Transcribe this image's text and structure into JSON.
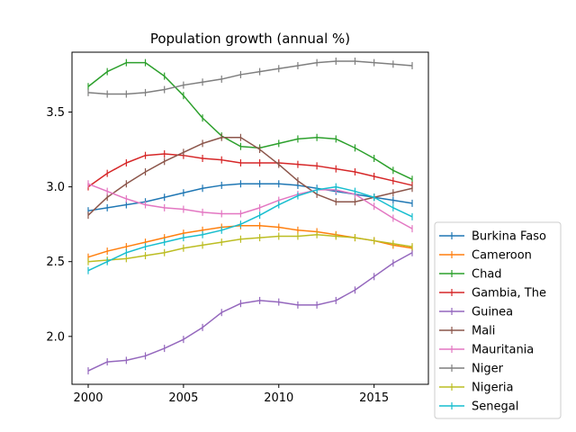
{
  "chart_data": {
    "type": "line",
    "title": "Population growth (annual %)",
    "xlabel": "",
    "ylabel": "",
    "x": [
      2000,
      2001,
      2002,
      2003,
      2004,
      2005,
      2006,
      2007,
      2008,
      2009,
      2010,
      2011,
      2012,
      2013,
      2014,
      2015,
      2016,
      2017
    ],
    "xlim": [
      1999.15,
      2017.85
    ],
    "ylim": [
      1.68,
      3.9
    ],
    "xticks": [
      2000,
      2005,
      2010,
      2015
    ],
    "yticks": [
      2.0,
      2.5,
      3.0,
      3.5
    ],
    "ytick_labels": [
      "2.0",
      "2.5",
      "3.0",
      "3.5"
    ],
    "grid": false,
    "legend_position": "lower right, outside the plot area",
    "marker": "vertical tick",
    "series": [
      {
        "name": "Burkina Faso",
        "color": "#1f77b4",
        "values": [
          2.84,
          2.86,
          2.88,
          2.9,
          2.93,
          2.96,
          2.99,
          3.01,
          3.02,
          3.02,
          3.02,
          3.01,
          2.99,
          2.97,
          2.95,
          2.93,
          2.91,
          2.89
        ]
      },
      {
        "name": "Cameroon",
        "color": "#ff7f0e",
        "values": [
          2.53,
          2.57,
          2.6,
          2.63,
          2.66,
          2.69,
          2.71,
          2.73,
          2.74,
          2.74,
          2.73,
          2.71,
          2.7,
          2.68,
          2.66,
          2.64,
          2.61,
          2.59
        ]
      },
      {
        "name": "Chad",
        "color": "#2ca02c",
        "values": [
          3.67,
          3.77,
          3.83,
          3.83,
          3.74,
          3.61,
          3.46,
          3.34,
          3.27,
          3.26,
          3.29,
          3.32,
          3.33,
          3.32,
          3.26,
          3.19,
          3.11,
          3.05
        ]
      },
      {
        "name": "Gambia, The",
        "color": "#d62728",
        "values": [
          3.0,
          3.09,
          3.16,
          3.21,
          3.22,
          3.21,
          3.19,
          3.18,
          3.16,
          3.16,
          3.16,
          3.15,
          3.14,
          3.12,
          3.1,
          3.07,
          3.04,
          3.01
        ]
      },
      {
        "name": "Guinea",
        "color": "#9467bd",
        "values": [
          1.77,
          1.83,
          1.84,
          1.87,
          1.92,
          1.98,
          2.06,
          2.16,
          2.22,
          2.24,
          2.23,
          2.21,
          2.21,
          2.24,
          2.31,
          2.4,
          2.49,
          2.56
        ]
      },
      {
        "name": "Mali",
        "color": "#8c564b",
        "values": [
          2.81,
          2.93,
          3.02,
          3.1,
          3.17,
          3.23,
          3.29,
          3.33,
          3.33,
          3.25,
          3.15,
          3.04,
          2.95,
          2.9,
          2.9,
          2.93,
          2.96,
          2.99
        ]
      },
      {
        "name": "Mauritania",
        "color": "#e377c2",
        "values": [
          3.02,
          2.97,
          2.92,
          2.88,
          2.86,
          2.85,
          2.83,
          2.82,
          2.82,
          2.86,
          2.91,
          2.95,
          2.98,
          2.98,
          2.95,
          2.87,
          2.79,
          2.72
        ]
      },
      {
        "name": "Niger",
        "color": "#7f7f7f",
        "values": [
          3.63,
          3.62,
          3.62,
          3.63,
          3.65,
          3.68,
          3.7,
          3.72,
          3.75,
          3.77,
          3.79,
          3.81,
          3.83,
          3.84,
          3.84,
          3.83,
          3.82,
          3.81
        ]
      },
      {
        "name": "Nigeria",
        "color": "#bcbd22",
        "values": [
          2.5,
          2.51,
          2.52,
          2.54,
          2.56,
          2.59,
          2.61,
          2.63,
          2.65,
          2.66,
          2.67,
          2.67,
          2.68,
          2.67,
          2.66,
          2.64,
          2.62,
          2.6
        ]
      },
      {
        "name": "Senegal",
        "color": "#17becf",
        "values": [
          2.44,
          2.5,
          2.56,
          2.6,
          2.63,
          2.66,
          2.68,
          2.71,
          2.75,
          2.81,
          2.88,
          2.94,
          2.98,
          3.0,
          2.97,
          2.93,
          2.86,
          2.8
        ]
      }
    ]
  }
}
